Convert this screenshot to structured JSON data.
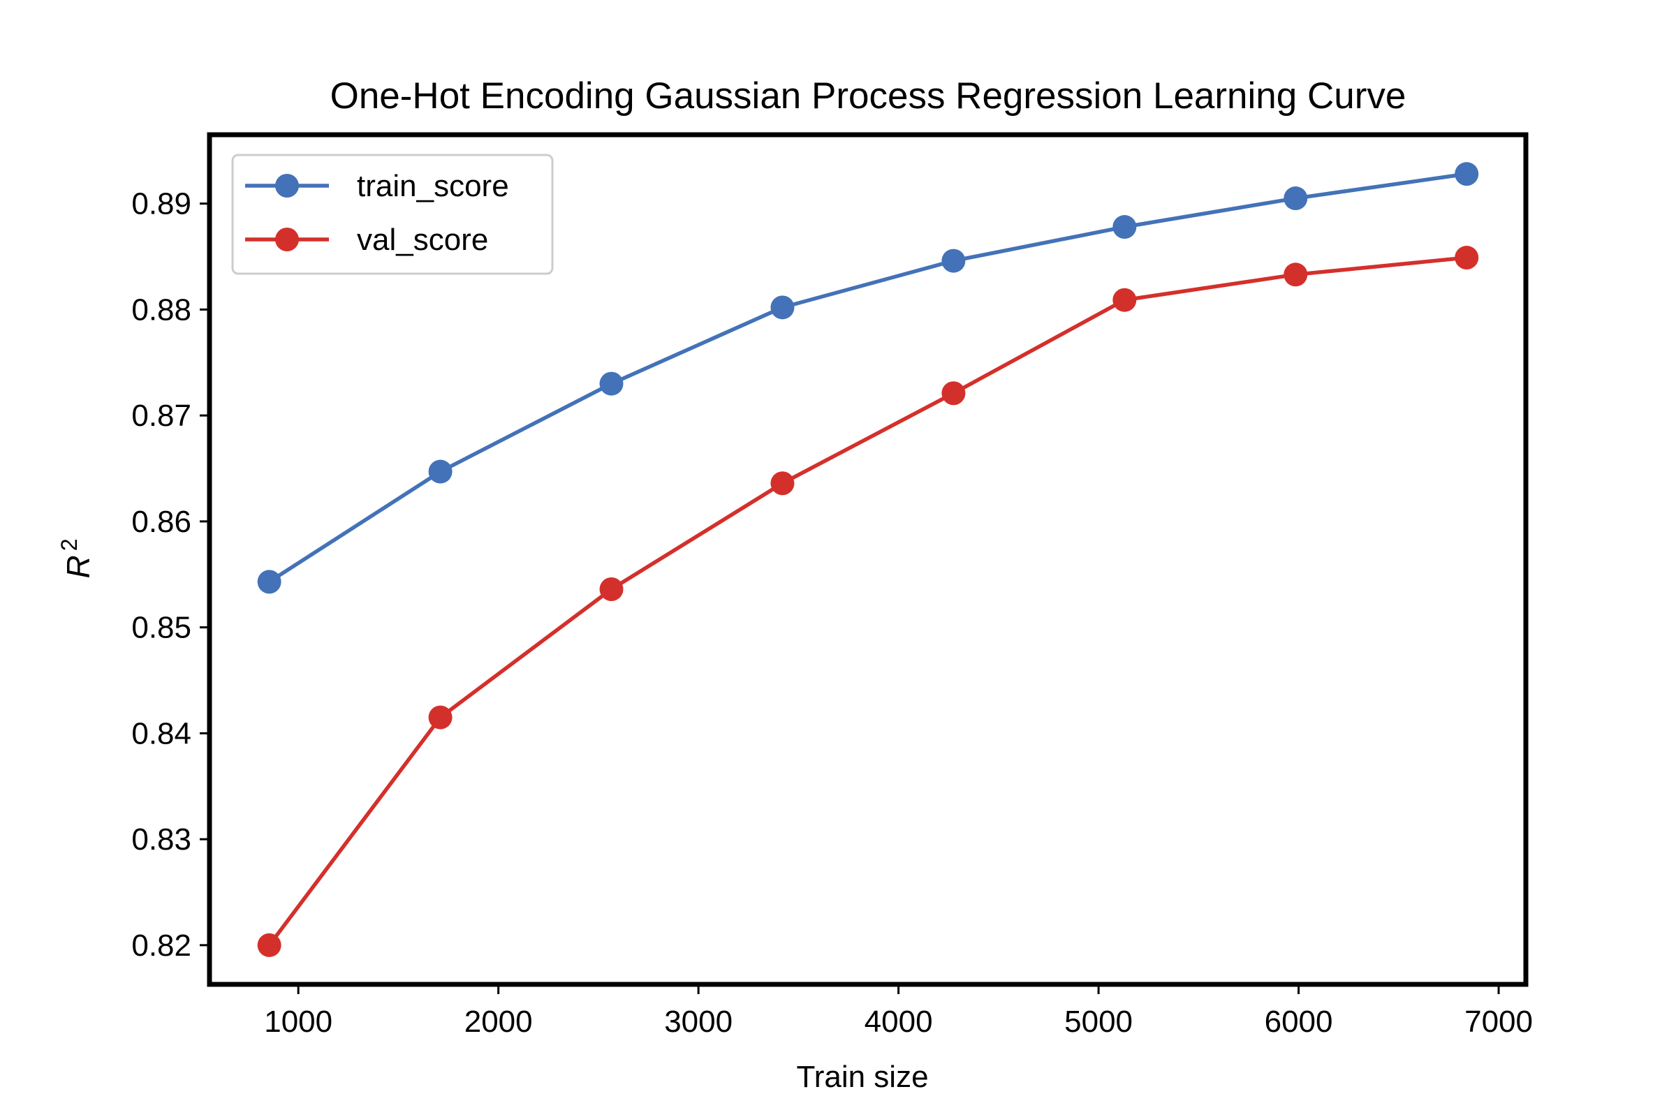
{
  "chart_data": {
    "type": "line",
    "title": "One-Hot Encoding Gaussian Process Regression Learning Curve",
    "xlabel": "Train size",
    "ylabel": "R",
    "ylabel_superscript": "2",
    "xlim": [
      556,
      7136
    ],
    "ylim": [
      0.8163,
      0.8965
    ],
    "xticks": [
      1000,
      2000,
      3000,
      4000,
      5000,
      6000,
      7000
    ],
    "xtick_labels": [
      "1000",
      "2000",
      "3000",
      "4000",
      "5000",
      "6000",
      "7000"
    ],
    "yticks": [
      0.82,
      0.83,
      0.84,
      0.85,
      0.86,
      0.87,
      0.88,
      0.89
    ],
    "ytick_labels": [
      "0.82",
      "0.83",
      "0.84",
      "0.85",
      "0.86",
      "0.87",
      "0.88",
      "0.89"
    ],
    "grid": false,
    "legend_position": "top-left",
    "x": [
      855,
      1710,
      2565,
      3420,
      4275,
      5130,
      5985,
      6840
    ],
    "series": [
      {
        "name": "train_score",
        "color": "#4372b8",
        "values": [
          0.8543,
          0.8647,
          0.873,
          0.8802,
          0.8846,
          0.8878,
          0.8905,
          0.8928
        ]
      },
      {
        "name": "val_score",
        "color": "#d4302b",
        "values": [
          0.82,
          0.8415,
          0.8536,
          0.8636,
          0.8721,
          0.8809,
          0.8833,
          0.8849
        ]
      }
    ]
  }
}
